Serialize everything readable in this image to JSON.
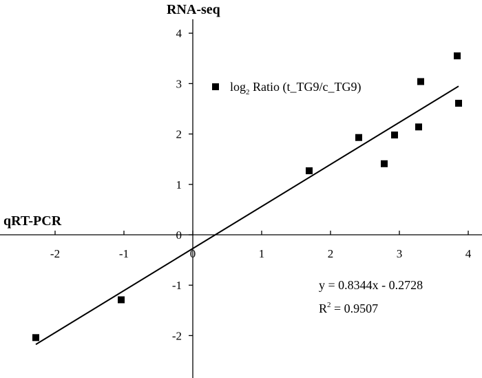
{
  "chart_data": {
    "type": "scatter",
    "xlabel": "qRT-PCR",
    "ylabel": "RNA-seq",
    "xlim": [
      -2.7,
      4.2
    ],
    "ylim": [
      -2.85,
      4.45
    ],
    "x_ticks": [
      -2,
      -1,
      0,
      1,
      2,
      3,
      4
    ],
    "y_ticks": [
      -2,
      -1,
      0,
      1,
      2,
      3,
      4
    ],
    "legend": {
      "placement": "top-center",
      "prefix": "log",
      "subscript": "2",
      "text": " Ratio (t_TG9/c_TG9)"
    },
    "series": [
      {
        "marker": "square",
        "color": "#000000",
        "points": [
          {
            "x": -2.28,
            "y": -2.04
          },
          {
            "x": -1.04,
            "y": -1.29
          },
          {
            "x": 1.69,
            "y": 1.27
          },
          {
            "x": 2.41,
            "y": 1.93
          },
          {
            "x": 2.78,
            "y": 1.41
          },
          {
            "x": 2.93,
            "y": 1.98
          },
          {
            "x": 3.28,
            "y": 2.14
          },
          {
            "x": 3.31,
            "y": 3.04
          },
          {
            "x": 3.84,
            "y": 3.55
          },
          {
            "x": 3.86,
            "y": 2.61
          }
        ]
      }
    ],
    "trendline": {
      "slope": 0.8344,
      "intercept": -0.2728,
      "x_range": [
        -2.28,
        3.86
      ],
      "equation": "y = 0.8344x - 0.2728",
      "r2_prefix": "R",
      "r2_sup": "2",
      "r2_suffix": " = 0.9507"
    }
  }
}
